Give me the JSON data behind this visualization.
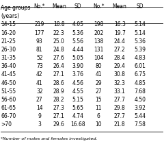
{
  "title_line1": "Age groups",
  "title_line2": "(years)",
  "col_headers": [
    "No.*",
    "Mean",
    "SD",
    "No.*",
    "Mean",
    "SD"
  ],
  "rows": [
    [
      "14-15",
      "219",
      "18.8",
      "4.05",
      "198",
      "16.3",
      "5.14"
    ],
    [
      "16-20",
      "177",
      "22.3",
      "5.36",
      "202",
      "19.7",
      "5.14"
    ],
    [
      "21-25",
      "93",
      "25.0",
      "5.56",
      "138",
      "24.4",
      "5.36"
    ],
    [
      "26-30",
      "81",
      "24.8",
      "4.44",
      "131",
      "27.2",
      "5.39"
    ],
    [
      "31-35",
      "52",
      "27.6",
      "5.05",
      "104",
      "28.4",
      "4.83"
    ],
    [
      "36-40",
      "73",
      "26.4",
      "3.90",
      "80",
      "29.4",
      "6.01"
    ],
    [
      "41-45",
      "42",
      "27.1",
      "3.76",
      "41",
      "30.8",
      "6.75"
    ],
    [
      "46-50",
      "41",
      "28.6",
      "4.56",
      "29",
      "32.3",
      "4.85"
    ],
    [
      "51-55",
      "32",
      "28.9",
      "4.55",
      "27",
      "33.1",
      "7.68"
    ],
    [
      "56-60",
      "27",
      "28.2",
      "5.15",
      "15",
      "27.7",
      "4.50"
    ],
    [
      "61-65",
      "14",
      "27.3",
      "5.65",
      "11",
      "29.8",
      "3.92"
    ],
    [
      "66-70",
      "9",
      "27.1",
      "4.74",
      "6",
      "27.7",
      "5.44"
    ],
    [
      ">70",
      "3",
      "29.6",
      "16.68",
      "10",
      "21.8",
      "7.58"
    ]
  ],
  "footnote": "*Number of males and females investigated.",
  "background_color": "#ffffff",
  "line_color": "#000000",
  "text_color": "#000000",
  "font_size": 5.5,
  "header_font_size": 5.5
}
